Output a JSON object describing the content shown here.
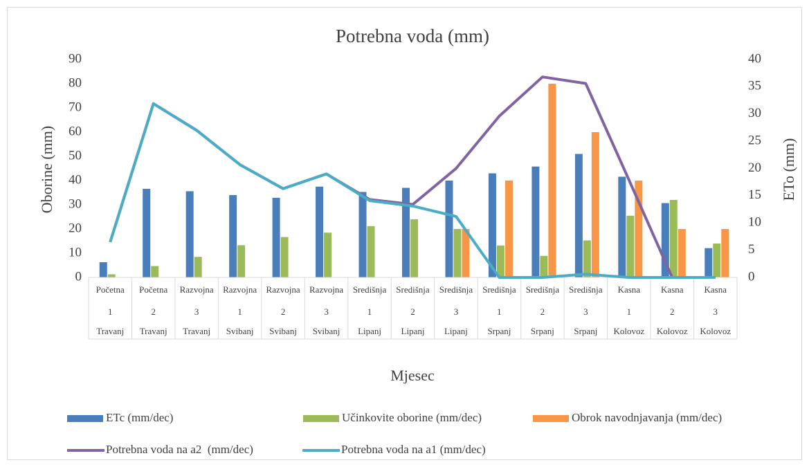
{
  "chart_data": {
    "type": "bar",
    "title": "Potrebna voda (mm)",
    "xlabel": "Mjesec",
    "ylabel": "Oborine (mm)",
    "y2label": "ETo (mm)",
    "categories": [
      [
        "Početna",
        "1",
        "Travanj"
      ],
      [
        "Početna",
        "2",
        "Travanj"
      ],
      [
        "Razvojna",
        "3",
        "Travanj"
      ],
      [
        "Razvojna",
        "1",
        "Svibanj"
      ],
      [
        "Razvojna",
        "2",
        "Svibanj"
      ],
      [
        "Razvojna",
        "3",
        "Svibanj"
      ],
      [
        "Središnja",
        "1",
        "Lipanj"
      ],
      [
        "Središnja",
        "2",
        "Lipanj"
      ],
      [
        "Središnja",
        "3",
        "Lipanj"
      ],
      [
        "Središnja",
        "1",
        "Srpanj"
      ],
      [
        "Središnja",
        "2",
        "Srpanj"
      ],
      [
        "Središnja",
        "3",
        "Srpanj"
      ],
      [
        "Kasna",
        "1",
        "Kolovoz"
      ],
      [
        "Kasna",
        "2",
        "Kolovoz"
      ],
      [
        "Kasna",
        "3",
        "Kolovoz"
      ]
    ],
    "ylim": [
      0,
      90
    ],
    "yticks": [
      0,
      10,
      20,
      30,
      40,
      50,
      60,
      70,
      80,
      90
    ],
    "y2lim": [
      0,
      40
    ],
    "y2ticks": [
      0,
      5,
      10,
      15,
      20,
      25,
      30,
      35,
      40
    ],
    "series": [
      {
        "name": "ETc (mm/dec)",
        "type": "bar",
        "color": "#4a7ebb",
        "values": [
          6.3,
          36.6,
          35.6,
          34,
          32.9,
          37.5,
          35.3,
          37,
          40,
          43,
          45.8,
          51,
          41.6,
          30.7,
          12.1
        ]
      },
      {
        "name": "Učinkovite oborine (mm/dec)",
        "type": "bar",
        "color": "#9bbb59",
        "values": [
          1.3,
          4.7,
          8.5,
          13.3,
          16.7,
          18.5,
          21.2,
          24,
          20,
          13.2,
          8.9,
          15.3,
          25.5,
          32,
          14
        ]
      },
      {
        "name": "Obrok navodnjavanja (mm/dec)",
        "type": "bar",
        "color": "#f79646",
        "values": [
          null,
          null,
          null,
          null,
          null,
          null,
          null,
          null,
          20,
          40,
          80,
          60,
          40,
          20,
          20
        ]
      },
      {
        "name": "Potrebna voda na a2  (mm/dec)",
        "type": "line",
        "axis": "y2",
        "color": "#8064a2",
        "values": [
          6.5,
          31.9,
          27.0,
          20.7,
          16.3,
          19.0,
          14.3,
          13.4,
          20.0,
          29.6,
          36.8,
          35.6,
          17.9,
          0,
          0
        ]
      },
      {
        "name": "Potrebna voda na a1 (mm/dec)",
        "type": "line",
        "axis": "y2",
        "color": "#4bacc6",
        "values": [
          6.5,
          31.9,
          27.0,
          20.7,
          16.3,
          19.0,
          14.1,
          13.1,
          11.2,
          0,
          0,
          0.6,
          0,
          0,
          0
        ]
      }
    ]
  }
}
